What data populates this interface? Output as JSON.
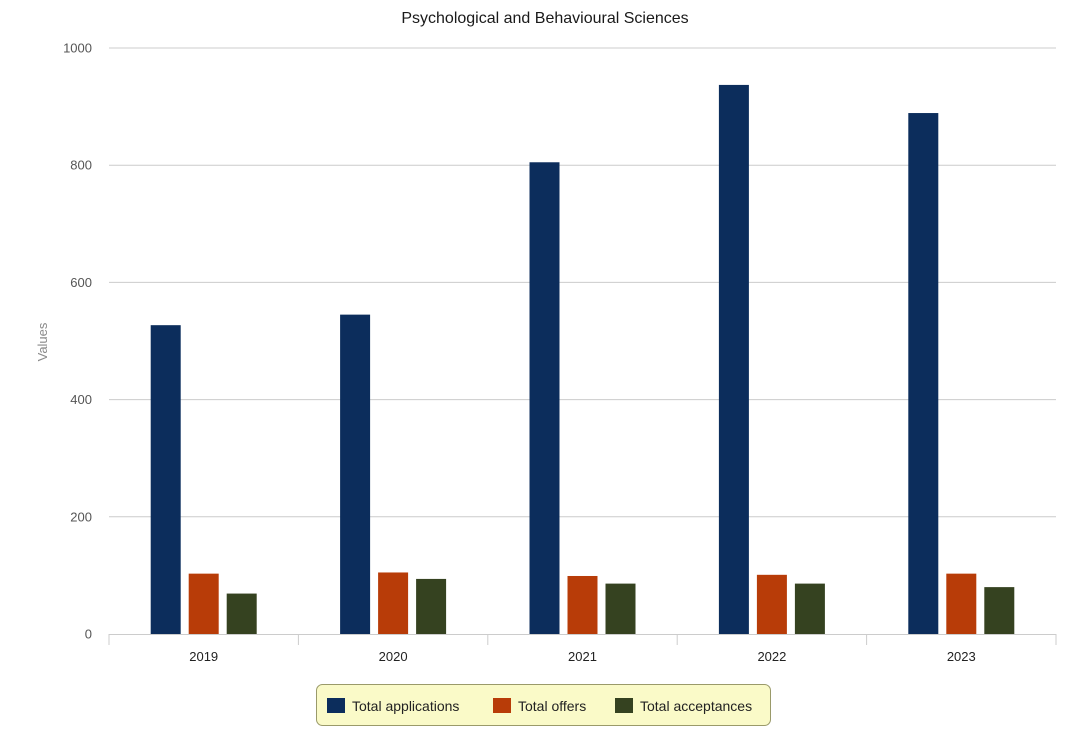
{
  "chart_data": {
    "type": "bar",
    "title": "Psychological and Behavioural Sciences",
    "xlabel": "",
    "ylabel": "Values",
    "ylim": [
      0,
      1000
    ],
    "yticks": [
      0,
      200,
      400,
      600,
      800,
      1000
    ],
    "categories": [
      "2019",
      "2020",
      "2021",
      "2022",
      "2023"
    ],
    "series": [
      {
        "name": "Total applications",
        "color": "#0c2d5c",
        "values": [
          527,
          545,
          805,
          937,
          889
        ]
      },
      {
        "name": "Total offers",
        "color": "#b83c08",
        "values": [
          103,
          105,
          99,
          101,
          103
        ]
      },
      {
        "name": "Total acceptances",
        "color": "#354220",
        "values": [
          69,
          94,
          86,
          86,
          80
        ]
      }
    ],
    "grid": true,
    "legend_position": "bottom-center",
    "legend_background": "#fafac8"
  }
}
